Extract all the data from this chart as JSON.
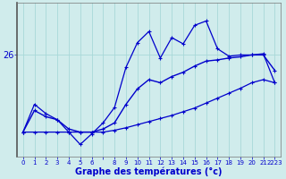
{
  "xlabel": "Graphe des températures (°c)",
  "background_color": "#d0ecec",
  "plot_bg_color": "#d0ecec",
  "grid_color": "#a8d8d8",
  "line_color": "#0000cc",
  "x_indices": [
    0,
    1,
    2,
    3,
    4,
    5,
    6,
    7,
    8,
    9,
    10,
    11,
    12,
    13,
    14,
    15,
    16,
    17,
    18,
    19,
    20,
    21,
    22
  ],
  "xtick_labels": [
    "0",
    "1",
    "2",
    "3",
    "4",
    "5",
    "6",
    "",
    "8",
    "9",
    "10",
    "11",
    "12",
    "13",
    "14",
    "15",
    "16",
    "17",
    "18",
    "19",
    "20",
    "21",
    "2223"
  ],
  "line_flat": [
    24.75,
    24.75,
    24.75,
    24.75,
    24.75,
    24.75,
    24.75,
    24.75,
    24.78,
    24.82,
    24.87,
    24.92,
    24.97,
    25.02,
    25.08,
    25.14,
    25.22,
    25.3,
    25.38,
    25.46,
    25.55,
    25.6,
    25.55
  ],
  "line_mid": [
    24.75,
    25.1,
    25.0,
    24.95,
    24.8,
    24.75,
    24.75,
    24.8,
    24.9,
    25.2,
    25.45,
    25.6,
    25.55,
    25.65,
    25.72,
    25.82,
    25.9,
    25.92,
    25.95,
    25.97,
    26.0,
    26.0,
    25.75
  ],
  "line_top": [
    24.75,
    25.2,
    25.05,
    24.95,
    24.75,
    24.55,
    24.72,
    24.9,
    25.15,
    25.8,
    26.2,
    26.38,
    25.95,
    26.28,
    26.18,
    26.48,
    26.55,
    26.1,
    25.98,
    26.0,
    26.0,
    26.02,
    25.55
  ],
  "ylim": [
    24.35,
    26.85
  ],
  "ytick_val": 26.0,
  "ytick_label": "26"
}
